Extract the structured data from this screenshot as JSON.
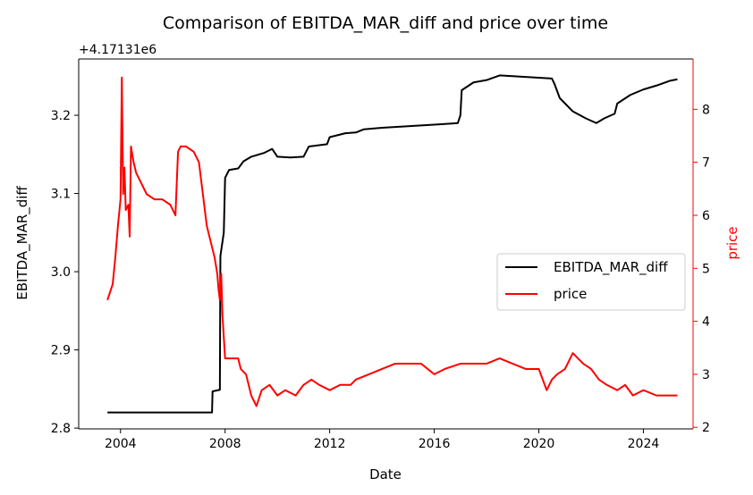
{
  "chart_data": {
    "type": "line",
    "title": "Comparison of EBITDA_MAR_diff and price over time",
    "xlabel": "Date",
    "ylabel_left": "EBITDA_MAR_diff",
    "ylabel_right": "price",
    "offset_text": "+4.17131e6",
    "x_ticks": [
      "2004",
      "2008",
      "2012",
      "2016",
      "2020",
      "2024"
    ],
    "y_left_ticks": [
      "2.8",
      "2.9",
      "3.0",
      "3.1",
      "3.2"
    ],
    "y_right_ticks": [
      "2",
      "3",
      "4",
      "5",
      "6",
      "7",
      "8"
    ],
    "x_range": [
      2002.4,
      2025.9
    ],
    "y_left_range": [
      2.799,
      3.272
    ],
    "y_right_range": [
      1.97,
      8.95
    ],
    "colors": {
      "left_series": "#000000",
      "right_series": "#ff0000"
    },
    "legend": {
      "placement": "center-right",
      "entries": [
        "EBITDA_MAR_diff",
        "price"
      ]
    },
    "series": [
      {
        "name": "EBITDA_MAR_diff",
        "axis": "left",
        "x": [
          2003.5,
          2005.0,
          2007.0,
          2007.5,
          2007.52,
          2007.8,
          2007.82,
          2007.95,
          2008.0,
          2008.15,
          2008.5,
          2008.7,
          2009.0,
          2009.5,
          2009.8,
          2010.0,
          2010.5,
          2011.0,
          2011.2,
          2011.9,
          2012.0,
          2012.6,
          2013.0,
          2013.3,
          2014.0,
          2015.0,
          2016.0,
          2016.9,
          2017.0,
          2017.05,
          2017.5,
          2018.0,
          2018.5,
          2019.0,
          2020.0,
          2020.5,
          2020.6,
          2020.8,
          2021.3,
          2021.8,
          2022.2,
          2022.5,
          2022.9,
          2023.0,
          2023.5,
          2024.0,
          2024.5,
          2025.0,
          2025.3
        ],
        "y": [
          2.82,
          2.82,
          2.82,
          2.82,
          2.847,
          2.849,
          3.02,
          3.05,
          3.12,
          3.13,
          3.132,
          3.141,
          3.147,
          3.152,
          3.157,
          3.147,
          3.146,
          3.147,
          3.16,
          3.163,
          3.172,
          3.177,
          3.178,
          3.182,
          3.184,
          3.186,
          3.188,
          3.19,
          3.2,
          3.232,
          3.242,
          3.245,
          3.251,
          3.25,
          3.248,
          3.247,
          3.24,
          3.222,
          3.205,
          3.196,
          3.19,
          3.196,
          3.202,
          3.215,
          3.226,
          3.233,
          3.238,
          3.244,
          3.246
        ]
      },
      {
        "name": "price",
        "axis": "right",
        "x": [
          2003.5,
          2003.7,
          2003.8,
          2003.9,
          2004.0,
          2004.05,
          2004.1,
          2004.15,
          2004.2,
          2004.3,
          2004.35,
          2004.4,
          2004.5,
          2004.6,
          2004.8,
          2005.0,
          2005.3,
          2005.6,
          2005.9,
          2006.1,
          2006.2,
          2006.3,
          2006.5,
          2006.8,
          2007.0,
          2007.1,
          2007.2,
          2007.3,
          2007.5,
          2007.6,
          2007.7,
          2007.75,
          2007.8,
          2007.85,
          2007.9,
          2008.0,
          2008.2,
          2008.5,
          2008.6,
          2008.8,
          2009.0,
          2009.2,
          2009.4,
          2009.7,
          2010.0,
          2010.3,
          2010.7,
          2011.0,
          2011.3,
          2011.6,
          2012.0,
          2012.4,
          2012.8,
          2013.0,
          2013.5,
          2014.0,
          2014.5,
          2015.0,
          2015.5,
          2016.0,
          2016.4,
          2017.0,
          2017.5,
          2018.0,
          2018.5,
          2019.0,
          2019.5,
          2020.0,
          2020.3,
          2020.5,
          2020.7,
          2021.0,
          2021.3,
          2021.7,
          2022.0,
          2022.3,
          2022.6,
          2023.0,
          2023.3,
          2023.6,
          2024.0,
          2024.5,
          2025.0,
          2025.3
        ],
        "y": [
          4.4,
          4.7,
          5.2,
          5.8,
          6.3,
          8.6,
          6.4,
          6.9,
          6.1,
          6.2,
          5.6,
          7.3,
          7.0,
          6.8,
          6.6,
          6.4,
          6.3,
          6.3,
          6.2,
          6.0,
          7.2,
          7.3,
          7.3,
          7.2,
          7.0,
          6.6,
          6.2,
          5.8,
          5.4,
          5.2,
          4.9,
          4.6,
          4.4,
          4.9,
          4.1,
          3.3,
          3.3,
          3.3,
          3.1,
          3.0,
          2.6,
          2.4,
          2.7,
          2.8,
          2.6,
          2.7,
          2.6,
          2.8,
          2.9,
          2.8,
          2.7,
          2.8,
          2.8,
          2.9,
          3.0,
          3.1,
          3.2,
          3.2,
          3.2,
          3.0,
          3.1,
          3.2,
          3.2,
          3.2,
          3.3,
          3.2,
          3.1,
          3.1,
          2.7,
          2.9,
          3.0,
          3.1,
          3.4,
          3.2,
          3.1,
          2.9,
          2.8,
          2.7,
          2.8,
          2.6,
          2.7,
          2.6,
          2.6,
          2.6
        ]
      }
    ]
  }
}
